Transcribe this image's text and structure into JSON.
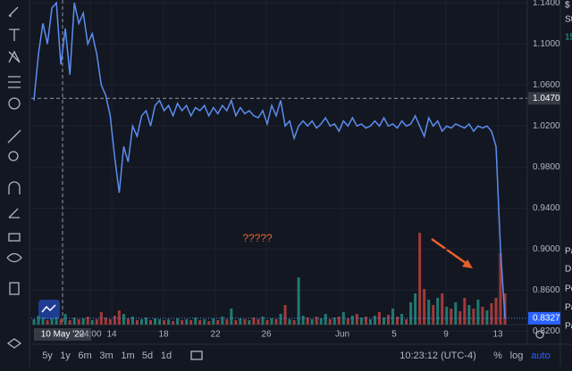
{
  "chart_data": {
    "type": "line",
    "color": "#5b8def",
    "price_axis": {
      "ylim": [
        0.8074,
        1.1428
      ],
      "ticks": [
        {
          "value": 1.14,
          "label": "1.1400"
        },
        {
          "value": 1.1,
          "label": "1.1000"
        },
        {
          "value": 1.06,
          "label": "1.0600"
        },
        {
          "value": 1.02,
          "label": "1.0200"
        },
        {
          "value": 0.98,
          "label": "0.9800"
        },
        {
          "value": 0.94,
          "label": "0.9400"
        },
        {
          "value": 0.9,
          "label": "0.9000"
        },
        {
          "value": 0.86,
          "label": "0.8600"
        },
        {
          "value": 0.82,
          "label": "0.8200"
        }
      ],
      "crosshair": {
        "value": 1.047,
        "label": "1.0470"
      },
      "last": {
        "value": 0.8327,
        "label": "0.8327"
      }
    },
    "values": [
      1.045,
      1.09,
      1.12,
      1.1,
      1.135,
      1.14,
      1.08,
      1.115,
      1.07,
      1.14,
      1.12,
      1.13,
      1.1,
      1.11,
      1.09,
      1.06,
      1.05,
      1.03,
      0.99,
      0.955,
      1.0,
      0.985,
      1.02,
      1.01,
      1.03,
      1.035,
      1.02,
      1.04,
      1.045,
      1.035,
      1.04,
      1.03,
      1.042,
      1.035,
      1.04,
      1.03,
      1.038,
      1.035,
      1.04,
      1.03,
      1.038,
      1.032,
      1.04,
      1.035,
      1.045,
      1.03,
      1.038,
      1.032,
      1.035,
      1.03,
      1.028,
      1.035,
      1.022,
      1.04,
      1.03,
      1.045,
      1.02,
      1.025,
      1.008,
      1.02,
      1.025,
      1.02,
      1.025,
      1.018,
      1.022,
      1.028,
      1.02,
      1.022,
      1.015,
      1.025,
      1.02,
      1.028,
      1.02,
      1.022,
      1.018,
      1.02,
      1.025,
      1.02,
      1.028,
      1.02,
      1.022,
      1.018,
      1.025,
      1.02,
      1.022,
      1.03,
      1.02,
      1.01,
      1.028,
      1.02,
      1.025,
      1.015,
      1.02,
      1.018,
      1.022,
      1.02,
      1.018,
      1.022,
      1.015,
      1.02,
      1.018,
      1.02,
      1.015,
      1.0,
      0.9,
      0.8327
    ],
    "volume": [
      6,
      10,
      8,
      5,
      7,
      9,
      6,
      12,
      5,
      8,
      6,
      7,
      9,
      5,
      6,
      14,
      8,
      6,
      10,
      16,
      12,
      7,
      9,
      5,
      6,
      8,
      5,
      7,
      6,
      5,
      6,
      4,
      7,
      5,
      6,
      5,
      8,
      5,
      6,
      4,
      7,
      5,
      9,
      6,
      18,
      5,
      7,
      6,
      5,
      8,
      6,
      9,
      5,
      7,
      6,
      12,
      22,
      6,
      5,
      53,
      10,
      8,
      6,
      9,
      7,
      12,
      6,
      8,
      9,
      14,
      7,
      10,
      12,
      8,
      9,
      6,
      10,
      14,
      8,
      11,
      18,
      9,
      12,
      6,
      25,
      35,
      103,
      40,
      28,
      22,
      30,
      35,
      20,
      18,
      25,
      15,
      30,
      22,
      18,
      28,
      20,
      16,
      24,
      30,
      80,
      35
    ],
    "time_axis": {
      "crosshair": "10 May '22",
      "labels": [
        "04:00",
        "14",
        "18",
        "22",
        "26",
        "Jun",
        "5",
        "9",
        "13"
      ]
    },
    "annotation": "?????"
  },
  "bottom_bar": {
    "ranges": [
      "5y",
      "1y",
      "6m",
      "3m",
      "1m",
      "5d",
      "1d"
    ],
    "clock": "10:23:12 (UTC-4)",
    "options": [
      "%",
      "log",
      "auto"
    ]
  },
  "right_panel": [
    "$",
    "St",
    "15",
    "Pa",
    "D",
    "Pe",
    "Pa",
    "Pa"
  ]
}
